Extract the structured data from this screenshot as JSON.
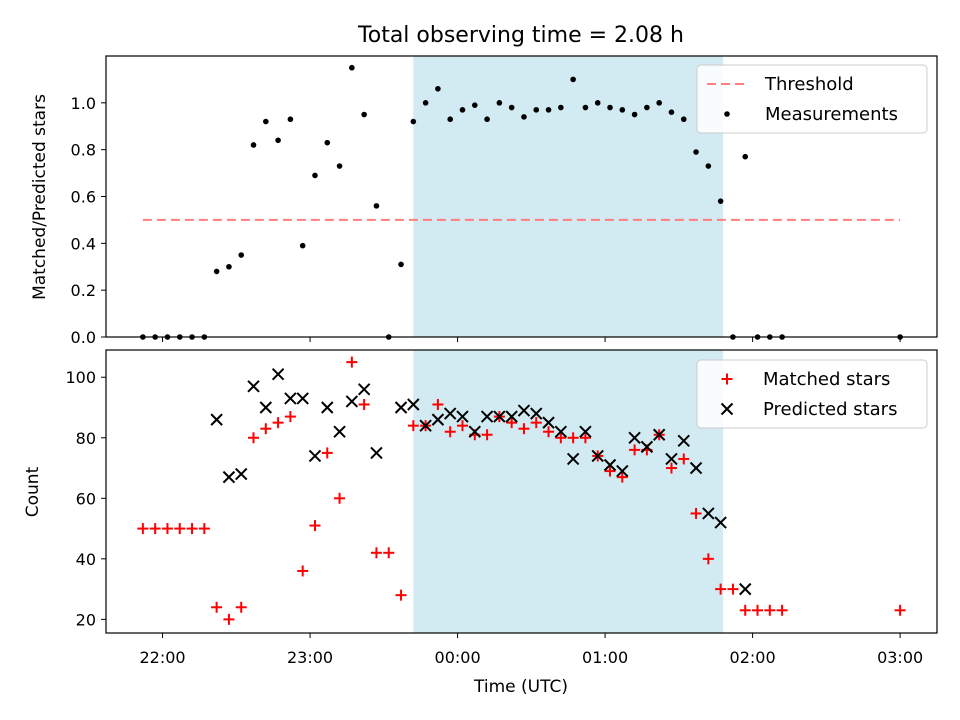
{
  "figure_title": "Total observing time = 2.08 h",
  "xlabel": "Time (UTC)",
  "x_ticks": [
    "22:00",
    "23:00",
    "00:00",
    "01:00",
    "02:00",
    "03:00"
  ],
  "colors": {
    "span": "#add8e6",
    "threshold": "#ff7f7f",
    "measurement": "#000000",
    "matched": "#ff0000",
    "predicted": "#000000"
  },
  "chart_data": [
    {
      "type": "scatter",
      "ylabel": "Matched/Predicted stars",
      "ylim": [
        0,
        1.2
      ],
      "yticks": [
        "0.0",
        "0.2",
        "0.4",
        "0.6",
        "0.8",
        "1.0"
      ],
      "x_unit": "minutes after 00:00 UTC",
      "xlim": [
        -143,
        195
      ],
      "shaded_span": [
        -18,
        108
      ],
      "legend": {
        "position": "upper right",
        "entries": [
          "Threshold",
          "Measurements"
        ]
      },
      "threshold": {
        "name": "Threshold",
        "y": 0.5,
        "x": [
          -128,
          180
        ]
      },
      "series": [
        {
          "name": "Measurements",
          "points": [
            [
              -128,
              0.0
            ],
            [
              -123,
              0.0
            ],
            [
              -118,
              0.0
            ],
            [
              -113,
              0.0
            ],
            [
              -108,
              0.0
            ],
            [
              -103,
              0.0
            ],
            [
              -98,
              0.28
            ],
            [
              -93,
              0.3
            ],
            [
              -88,
              0.35
            ],
            [
              -83,
              0.82
            ],
            [
              -78,
              0.92
            ],
            [
              -73,
              0.84
            ],
            [
              -68,
              0.93
            ],
            [
              -63,
              0.39
            ],
            [
              -58,
              0.69
            ],
            [
              -53,
              0.83
            ],
            [
              -48,
              0.73
            ],
            [
              -43,
              1.15
            ],
            [
              -38,
              0.95
            ],
            [
              -33,
              0.56
            ],
            [
              -28,
              0.0
            ],
            [
              -23,
              0.31
            ],
            [
              -18,
              0.92
            ],
            [
              -13,
              1.0
            ],
            [
              -8,
              1.06
            ],
            [
              -3,
              0.93
            ],
            [
              2,
              0.97
            ],
            [
              7,
              0.99
            ],
            [
              12,
              0.93
            ],
            [
              17,
              1.0
            ],
            [
              22,
              0.98
            ],
            [
              27,
              0.94
            ],
            [
              32,
              0.97
            ],
            [
              37,
              0.97
            ],
            [
              42,
              0.98
            ],
            [
              47,
              1.1
            ],
            [
              52,
              0.98
            ],
            [
              57,
              1.0
            ],
            [
              62,
              0.98
            ],
            [
              67,
              0.97
            ],
            [
              72,
              0.95
            ],
            [
              77,
              0.98
            ],
            [
              82,
              1.0
            ],
            [
              87,
              0.96
            ],
            [
              92,
              0.93
            ],
            [
              97,
              0.79
            ],
            [
              102,
              0.73
            ],
            [
              107,
              0.58
            ],
            [
              112,
              0.0
            ],
            [
              117,
              0.77
            ],
            [
              122,
              0.0
            ],
            [
              127,
              0.0
            ],
            [
              132,
              0.0
            ],
            [
              180,
              0.0
            ]
          ]
        }
      ]
    },
    {
      "type": "scatter",
      "ylabel": "Count",
      "ylim": [
        15.5,
        109
      ],
      "yticks": [
        "20",
        "40",
        "60",
        "80",
        "100"
      ],
      "x_unit": "minutes after 00:00 UTC",
      "xlim": [
        -143,
        195
      ],
      "shaded_span": [
        -18,
        108
      ],
      "legend": {
        "position": "upper right",
        "entries": [
          "Matched stars",
          "Predicted stars"
        ]
      },
      "series": [
        {
          "name": "Matched stars",
          "marker": "+",
          "points": [
            [
              -128,
              50
            ],
            [
              -123,
              50
            ],
            [
              -118,
              50
            ],
            [
              -113,
              50
            ],
            [
              -108,
              50
            ],
            [
              -103,
              50
            ],
            [
              -98,
              24
            ],
            [
              -93,
              20
            ],
            [
              -88,
              24
            ],
            [
              -83,
              80
            ],
            [
              -78,
              83
            ],
            [
              -73,
              85
            ],
            [
              -68,
              87
            ],
            [
              -63,
              36
            ],
            [
              -58,
              51
            ],
            [
              -53,
              75
            ],
            [
              -48,
              60
            ],
            [
              -43,
              105
            ],
            [
              -38,
              91
            ],
            [
              -33,
              42
            ],
            [
              -28,
              42
            ],
            [
              -23,
              28
            ],
            [
              -18,
              84
            ],
            [
              -13,
              84
            ],
            [
              -8,
              91
            ],
            [
              -3,
              82
            ],
            [
              2,
              84
            ],
            [
              7,
              81
            ],
            [
              12,
              81
            ],
            [
              17,
              87
            ],
            [
              22,
              85
            ],
            [
              27,
              83
            ],
            [
              32,
              85
            ],
            [
              37,
              82
            ],
            [
              42,
              80
            ],
            [
              47,
              80
            ],
            [
              52,
              80
            ],
            [
              57,
              74
            ],
            [
              62,
              69
            ],
            [
              67,
              67
            ],
            [
              72,
              76
            ],
            [
              77,
              76
            ],
            [
              82,
              81
            ],
            [
              87,
              70
            ],
            [
              92,
              73
            ],
            [
              97,
              55
            ],
            [
              102,
              40
            ],
            [
              107,
              30
            ],
            [
              112,
              30
            ],
            [
              117,
              23
            ],
            [
              122,
              23
            ],
            [
              127,
              23
            ],
            [
              132,
              23
            ],
            [
              180,
              23
            ]
          ]
        },
        {
          "name": "Predicted stars",
          "marker": "x",
          "points": [
            [
              -98,
              86
            ],
            [
              -93,
              67
            ],
            [
              -88,
              68
            ],
            [
              -83,
              97
            ],
            [
              -78,
              90
            ],
            [
              -73,
              101
            ],
            [
              -68,
              93
            ],
            [
              -63,
              93
            ],
            [
              -58,
              74
            ],
            [
              -53,
              90
            ],
            [
              -48,
              82
            ],
            [
              -43,
              92
            ],
            [
              -38,
              96
            ],
            [
              -33,
              75
            ],
            [
              -23,
              90
            ],
            [
              -18,
              91
            ],
            [
              -13,
              84
            ],
            [
              -8,
              86
            ],
            [
              -3,
              88
            ],
            [
              2,
              87
            ],
            [
              7,
              82
            ],
            [
              12,
              87
            ],
            [
              17,
              87
            ],
            [
              22,
              87
            ],
            [
              27,
              89
            ],
            [
              32,
              88
            ],
            [
              37,
              85
            ],
            [
              42,
              82
            ],
            [
              47,
              73
            ],
            [
              52,
              82
            ],
            [
              57,
              74
            ],
            [
              62,
              71
            ],
            [
              67,
              69
            ],
            [
              72,
              80
            ],
            [
              77,
              77
            ],
            [
              82,
              81
            ],
            [
              87,
              73
            ],
            [
              92,
              79
            ],
            [
              97,
              70
            ],
            [
              102,
              55
            ],
            [
              107,
              52
            ],
            [
              117,
              30
            ]
          ]
        }
      ]
    }
  ]
}
